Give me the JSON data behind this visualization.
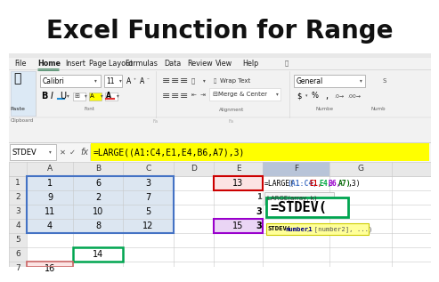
{
  "title": "Excel Function for Range",
  "title_fontsize": 20,
  "title_fontweight": "bold",
  "menu_items": [
    "File",
    "Home",
    "Insert",
    "Page Layout",
    "Formulas",
    "Data",
    "Review",
    "View",
    "Help"
  ],
  "formula_bar_text": "=LARGE((A1:C4,E1,E4,B6,A7),3)",
  "name_box": "STDEV",
  "col_labels": [
    "A",
    "B",
    "C",
    "D",
    "E",
    "F",
    "G"
  ],
  "cell_data": {
    "A1": "1",
    "B1": "6",
    "C1": "3",
    "A2": "9",
    "B2": "2",
    "C2": "7",
    "A3": "11",
    "B3": "10",
    "C3": "5",
    "A4": "4",
    "B4": "8",
    "C4": "12",
    "B6": "14",
    "A7": "16",
    "E1": "13",
    "E4": "15"
  },
  "formula_parts": [
    [
      "=LARGE(",
      "#000000"
    ],
    [
      "(A1:C4,",
      "#4472c4"
    ],
    [
      "E1,",
      "#cc0000"
    ],
    [
      "E4,",
      "#00aa44"
    ],
    [
      "B6,",
      "#9900cc"
    ],
    [
      "A7)",
      "#006600"
    ],
    [
      ",3)",
      "#000000"
    ]
  ],
  "large_tooltip": "LARGE(array, k)",
  "stdev_formula": "=STDEV(",
  "stdev_tooltip": "STDEV(",
  "stdev_tooltip_num1": "number1",
  "stdev_tooltip_rest": ", [number2], ...)",
  "stdev_tooltip_bg": "#ffff99"
}
